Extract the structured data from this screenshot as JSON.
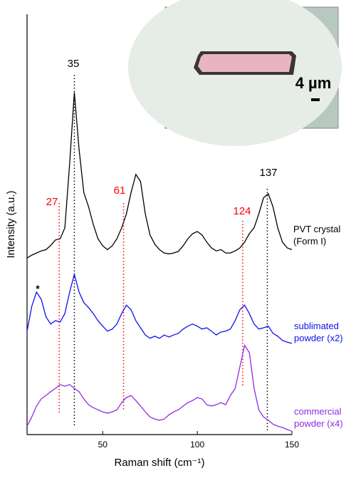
{
  "chart_data": {
    "type": "line",
    "xlabel": "Raman shift (cm⁻¹)",
    "ylabel": "Intensity (a.u.)",
    "xlim": [
      10,
      150
    ],
    "xticks": [
      50,
      100,
      150
    ],
    "ylim": [
      0,
      100
    ],
    "x": [
      10,
      12.5,
      15,
      17.5,
      20,
      22.5,
      25,
      27.5,
      30,
      32.5,
      35,
      37.5,
      40,
      42.5,
      45,
      47.5,
      50,
      52.5,
      55,
      57.5,
      60,
      62.5,
      65,
      67.5,
      70,
      72.5,
      75,
      77.5,
      80,
      82.5,
      85,
      87.5,
      90,
      92.5,
      95,
      97.5,
      100,
      102.5,
      105,
      107.5,
      110,
      112.5,
      115,
      117.5,
      120,
      122.5,
      125,
      127.5,
      130,
      132.5,
      135,
      137.5,
      140,
      142.5,
      145,
      147.5,
      150
    ],
    "series": [
      {
        "name": "PVT crystal (Form I)",
        "color": "#000000",
        "values": [
          42,
          42.7,
          43.2,
          43.7,
          44,
          45,
          46.3,
          46.6,
          49.2,
          64.4,
          81.4,
          67.8,
          57.6,
          54.2,
          50,
          46.6,
          44.9,
          44,
          44.9,
          46.6,
          49.2,
          52.5,
          57.6,
          61.9,
          60.2,
          52.5,
          47.5,
          45.3,
          44,
          43.2,
          43,
          43.2,
          43.6,
          44.9,
          46.6,
          47.8,
          48.3,
          47.5,
          45.8,
          44.4,
          43.7,
          44,
          43.2,
          43.2,
          43.7,
          44.4,
          45.8,
          47.8,
          49.2,
          52.5,
          56.3,
          57.3,
          54.2,
          49.2,
          45.8,
          44.4,
          44
        ]
      },
      {
        "name": "sublimated powder (x2)",
        "color": "#1010ee",
        "values": [
          24.6,
          30.5,
          33.9,
          32.2,
          28,
          26.3,
          27.1,
          26.8,
          28.8,
          33.9,
          38.1,
          33.9,
          31.4,
          30.2,
          28.8,
          27.1,
          25.8,
          24.6,
          25.1,
          26.3,
          28.8,
          30.8,
          29.7,
          27.1,
          25.4,
          23.7,
          22.9,
          23.4,
          22.9,
          23.7,
          23.2,
          23.7,
          24.1,
          25.1,
          25.8,
          26.3,
          25.8,
          25.1,
          25.4,
          24.6,
          23.7,
          24.4,
          24.6,
          25.1,
          27.1,
          29.7,
          30.8,
          28.8,
          26.3,
          25.1,
          25.4,
          25.8,
          24.1,
          23.4,
          22.4,
          22,
          21.7
        ]
      },
      {
        "name": "commercial powder (x4)",
        "color": "#8e2be2",
        "values": [
          2,
          4.2,
          6.8,
          8.5,
          9.3,
          10.2,
          11,
          11.9,
          11.5,
          11.9,
          11,
          10.2,
          8.5,
          7.1,
          6.4,
          5.9,
          5.4,
          5.1,
          5.4,
          5.9,
          7.6,
          8.8,
          9.3,
          8.1,
          6.8,
          5.4,
          4.2,
          3.7,
          3.4,
          3.7,
          4.7,
          5.4,
          5.9,
          6.8,
          7.6,
          8.1,
          8.8,
          8.5,
          7.1,
          6.8,
          7.1,
          7.6,
          7.1,
          9.3,
          11,
          16.1,
          21.2,
          19.5,
          11,
          5.9,
          4.2,
          3.4,
          2.5,
          2,
          1.7,
          1.2,
          0.8
        ]
      }
    ],
    "peaks": [
      {
        "x": 35,
        "color": "#000000"
      },
      {
        "x": 27,
        "color": "#ff0000"
      },
      {
        "x": 61,
        "color": "#ff0000"
      },
      {
        "x": 124,
        "color": "#ff0000"
      },
      {
        "x": 137,
        "color": "#000000"
      }
    ],
    "star": "*",
    "inset_label": "4 µm"
  }
}
